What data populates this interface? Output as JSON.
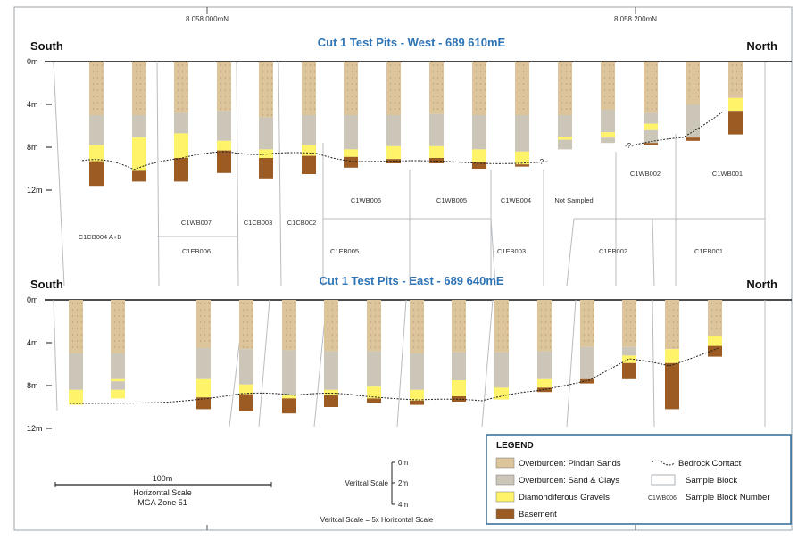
{
  "top_eastings": [
    "8 058 000mN",
    "8 058 200mN"
  ],
  "section_west": {
    "title": "Cut 1 Test Pits - West - 689 610mE",
    "left_label": "South",
    "right_label": "North",
    "depth_labels": [
      "0m",
      "4m",
      "8m",
      "12m"
    ],
    "block_numbers": [
      "C1CB004 A+B",
      "C1WB007",
      "C1CB003",
      "C1CB002",
      "C1WB006",
      "C1WB005",
      "C1WB004",
      "Not Sampled",
      "C1WB002",
      "C1WB001",
      "C1EB006",
      "C1EB005",
      "C1EB003",
      "C1EB002",
      "C1EB001"
    ],
    "unknown_markers": [
      "-?",
      "-?-"
    ],
    "pits": [
      {
        "depth_m": 11.6,
        "layers": [
          {
            "unit": "pindan",
            "top": 0,
            "bottom": 5
          },
          {
            "unit": "sand_clay",
            "top": 5,
            "bottom": 7.8
          },
          {
            "unit": "gravel",
            "top": 7.8,
            "bottom": 9.3
          },
          {
            "unit": "basement",
            "top": 9.3,
            "bottom": 11.6
          }
        ]
      },
      {
        "depth_m": 11.2,
        "layers": [
          {
            "unit": "pindan",
            "top": 0,
            "bottom": 5
          },
          {
            "unit": "sand_clay",
            "top": 5,
            "bottom": 7.1
          },
          {
            "unit": "gravel",
            "top": 7.1,
            "bottom": 10.2
          },
          {
            "unit": "basement",
            "top": 10.2,
            "bottom": 11.2
          }
        ]
      },
      {
        "depth_m": 11.2,
        "layers": [
          {
            "unit": "pindan",
            "top": 0,
            "bottom": 4.8
          },
          {
            "unit": "sand_clay",
            "top": 4.8,
            "bottom": 6.7
          },
          {
            "unit": "gravel",
            "top": 6.7,
            "bottom": 9.0
          },
          {
            "unit": "basement",
            "top": 9.0,
            "bottom": 11.2
          }
        ]
      },
      {
        "depth_m": 10.4,
        "layers": [
          {
            "unit": "pindan",
            "top": 0,
            "bottom": 4.6
          },
          {
            "unit": "sand_clay",
            "top": 4.6,
            "bottom": 7.4
          },
          {
            "unit": "gravel",
            "top": 7.4,
            "bottom": 8.3
          },
          {
            "unit": "basement",
            "top": 8.3,
            "bottom": 10.4
          }
        ]
      },
      {
        "depth_m": 10.9,
        "layers": [
          {
            "unit": "pindan",
            "top": 0,
            "bottom": 5.2
          },
          {
            "unit": "sand_clay",
            "top": 5.2,
            "bottom": 8.2
          },
          {
            "unit": "gravel",
            "top": 8.2,
            "bottom": 9.0
          },
          {
            "unit": "basement",
            "top": 9.0,
            "bottom": 10.9
          }
        ]
      },
      {
        "depth_m": 10.5,
        "layers": [
          {
            "unit": "pindan",
            "top": 0,
            "bottom": 5.0
          },
          {
            "unit": "sand_clay",
            "top": 5.0,
            "bottom": 7.8
          },
          {
            "unit": "gravel",
            "top": 7.8,
            "bottom": 8.8
          },
          {
            "unit": "basement",
            "top": 8.8,
            "bottom": 10.5
          }
        ]
      },
      {
        "depth_m": 9.9,
        "layers": [
          {
            "unit": "pindan",
            "top": 0,
            "bottom": 5.0
          },
          {
            "unit": "sand_clay",
            "top": 5.0,
            "bottom": 8.2
          },
          {
            "unit": "gravel",
            "top": 8.2,
            "bottom": 8.9
          },
          {
            "unit": "basement",
            "top": 8.9,
            "bottom": 9.9
          }
        ]
      },
      {
        "depth_m": 9.5,
        "layers": [
          {
            "unit": "pindan",
            "top": 0,
            "bottom": 5.0
          },
          {
            "unit": "sand_clay",
            "top": 5.0,
            "bottom": 7.9
          },
          {
            "unit": "gravel",
            "top": 7.9,
            "bottom": 9.1
          },
          {
            "unit": "basement",
            "top": 9.1,
            "bottom": 9.5
          }
        ]
      },
      {
        "depth_m": 9.5,
        "layers": [
          {
            "unit": "pindan",
            "top": 0,
            "bottom": 4.9
          },
          {
            "unit": "sand_clay",
            "top": 4.9,
            "bottom": 7.9
          },
          {
            "unit": "gravel",
            "top": 7.9,
            "bottom": 9.0
          },
          {
            "unit": "basement",
            "top": 9.0,
            "bottom": 9.5
          }
        ]
      },
      {
        "depth_m": 10.0,
        "layers": [
          {
            "unit": "pindan",
            "top": 0,
            "bottom": 5.0
          },
          {
            "unit": "sand_clay",
            "top": 5.0,
            "bottom": 8.2
          },
          {
            "unit": "gravel",
            "top": 8.2,
            "bottom": 9.4
          },
          {
            "unit": "basement",
            "top": 9.4,
            "bottom": 10.0
          }
        ]
      },
      {
        "depth_m": 9.8,
        "layers": [
          {
            "unit": "pindan",
            "top": 0,
            "bottom": 5.0
          },
          {
            "unit": "sand_clay",
            "top": 5.0,
            "bottom": 8.4
          },
          {
            "unit": "gravel",
            "top": 8.4,
            "bottom": 9.6
          },
          {
            "unit": "basement",
            "top": 9.6,
            "bottom": 9.8
          }
        ]
      },
      {
        "depth_m": 8.2,
        "layers": [
          {
            "unit": "pindan",
            "top": 0,
            "bottom": 5.0
          },
          {
            "unit": "sand_clay",
            "top": 5.0,
            "bottom": 7.0
          },
          {
            "unit": "gravel",
            "top": 7.0,
            "bottom": 7.3
          },
          {
            "unit": "sand_clay",
            "top": 7.3,
            "bottom": 8.2
          }
        ]
      },
      {
        "depth_m": 7.6,
        "layers": [
          {
            "unit": "pindan",
            "top": 0,
            "bottom": 4.5
          },
          {
            "unit": "sand_clay",
            "top": 4.5,
            "bottom": 6.6
          },
          {
            "unit": "gravel",
            "top": 6.6,
            "bottom": 7.1
          },
          {
            "unit": "sand_clay",
            "top": 7.1,
            "bottom": 7.6
          }
        ]
      },
      {
        "depth_m": 7.8,
        "layers": [
          {
            "unit": "pindan",
            "top": 0,
            "bottom": 4.8
          },
          {
            "unit": "sand_clay",
            "top": 4.8,
            "bottom": 5.8
          },
          {
            "unit": "gravel",
            "top": 5.8,
            "bottom": 6.4
          },
          {
            "unit": "sand_clay",
            "top": 6.4,
            "bottom": 7.6
          },
          {
            "unit": "basement",
            "top": 7.6,
            "bottom": 7.8
          }
        ]
      },
      {
        "depth_m": 7.4,
        "layers": [
          {
            "unit": "pindan",
            "top": 0,
            "bottom": 4.0
          },
          {
            "unit": "sand_clay",
            "top": 4.0,
            "bottom": 7.1
          },
          {
            "unit": "basement",
            "top": 7.1,
            "bottom": 7.4
          }
        ]
      },
      {
        "depth_m": 6.8,
        "layers": [
          {
            "unit": "pindan",
            "top": 0,
            "bottom": 3.4
          },
          {
            "unit": "gravel",
            "top": 3.4,
            "bottom": 4.6
          },
          {
            "unit": "basement",
            "top": 4.6,
            "bottom": 6.8
          }
        ]
      }
    ]
  },
  "section_east": {
    "title": "Cut 1 Test Pits - East - 689 640mE",
    "left_label": "South",
    "right_label": "North",
    "depth_labels": [
      "0m",
      "4m",
      "8m",
      "12m"
    ],
    "pits": [
      {
        "depth_m": 9.8,
        "layers": [
          {
            "unit": "pindan",
            "top": 0,
            "bottom": 5.0
          },
          {
            "unit": "sand_clay",
            "top": 5.0,
            "bottom": 8.4
          },
          {
            "unit": "gravel",
            "top": 8.4,
            "bottom": 9.8
          }
        ]
      },
      {
        "depth_m": 9.2,
        "layers": [
          {
            "unit": "pindan",
            "top": 0,
            "bottom": 5.0
          },
          {
            "unit": "sand_clay",
            "top": 5.0,
            "bottom": 7.4
          },
          {
            "unit": "gravel",
            "top": 7.4,
            "bottom": 7.6
          },
          {
            "unit": "sand_clay",
            "top": 7.6,
            "bottom": 8.4
          },
          {
            "unit": "gravel",
            "top": 8.4,
            "bottom": 9.2
          }
        ]
      },
      {
        "depth_m": 10.2,
        "layers": [
          {
            "unit": "pindan",
            "top": 0,
            "bottom": 4.5
          },
          {
            "unit": "sand_clay",
            "top": 4.5,
            "bottom": 7.4
          },
          {
            "unit": "gravel",
            "top": 7.4,
            "bottom": 9.1
          },
          {
            "unit": "basement",
            "top": 9.1,
            "bottom": 10.2
          }
        ]
      },
      {
        "depth_m": 10.4,
        "layers": [
          {
            "unit": "pindan",
            "top": 0,
            "bottom": 4.6
          },
          {
            "unit": "sand_clay",
            "top": 4.6,
            "bottom": 7.9
          },
          {
            "unit": "gravel",
            "top": 7.9,
            "bottom": 8.8
          },
          {
            "unit": "basement",
            "top": 8.8,
            "bottom": 10.4
          }
        ]
      },
      {
        "depth_m": 10.6,
        "layers": [
          {
            "unit": "pindan",
            "top": 0,
            "bottom": 4.7
          },
          {
            "unit": "sand_clay",
            "top": 4.7,
            "bottom": 8.9
          },
          {
            "unit": "gravel",
            "top": 8.9,
            "bottom": 9.2
          },
          {
            "unit": "basement",
            "top": 9.2,
            "bottom": 10.6
          }
        ]
      },
      {
        "depth_m": 10.0,
        "layers": [
          {
            "unit": "pindan",
            "top": 0,
            "bottom": 4.8
          },
          {
            "unit": "sand_clay",
            "top": 4.8,
            "bottom": 8.4
          },
          {
            "unit": "gravel",
            "top": 8.4,
            "bottom": 8.9
          },
          {
            "unit": "basement",
            "top": 8.9,
            "bottom": 10.0
          }
        ]
      },
      {
        "depth_m": 9.6,
        "layers": [
          {
            "unit": "pindan",
            "top": 0,
            "bottom": 4.8
          },
          {
            "unit": "sand_clay",
            "top": 4.8,
            "bottom": 8.1
          },
          {
            "unit": "gravel",
            "top": 8.1,
            "bottom": 9.2
          },
          {
            "unit": "basement",
            "top": 9.2,
            "bottom": 9.6
          }
        ]
      },
      {
        "depth_m": 9.8,
        "layers": [
          {
            "unit": "pindan",
            "top": 0,
            "bottom": 5.0
          },
          {
            "unit": "sand_clay",
            "top": 5.0,
            "bottom": 8.4
          },
          {
            "unit": "gravel",
            "top": 8.4,
            "bottom": 9.4
          },
          {
            "unit": "basement",
            "top": 9.4,
            "bottom": 9.8
          }
        ]
      },
      {
        "depth_m": 9.5,
        "layers": [
          {
            "unit": "pindan",
            "top": 0,
            "bottom": 4.9
          },
          {
            "unit": "sand_clay",
            "top": 4.9,
            "bottom": 7.5
          },
          {
            "unit": "gravel",
            "top": 7.5,
            "bottom": 9.0
          },
          {
            "unit": "basement",
            "top": 9.0,
            "bottom": 9.5
          }
        ]
      },
      {
        "depth_m": 9.3,
        "layers": [
          {
            "unit": "pindan",
            "top": 0,
            "bottom": 4.9
          },
          {
            "unit": "sand_clay",
            "top": 4.9,
            "bottom": 8.2
          },
          {
            "unit": "gravel",
            "top": 8.2,
            "bottom": 9.3
          }
        ]
      },
      {
        "depth_m": 8.6,
        "layers": [
          {
            "unit": "pindan",
            "top": 0,
            "bottom": 4.8
          },
          {
            "unit": "sand_clay",
            "top": 4.8,
            "bottom": 7.4
          },
          {
            "unit": "gravel",
            "top": 7.4,
            "bottom": 8.2
          },
          {
            "unit": "basement",
            "top": 8.2,
            "bottom": 8.6
          }
        ]
      },
      {
        "depth_m": 7.8,
        "layers": [
          {
            "unit": "pindan",
            "top": 0,
            "bottom": 4.4
          },
          {
            "unit": "sand_clay",
            "top": 4.4,
            "bottom": 7.4
          },
          {
            "unit": "basement",
            "top": 7.4,
            "bottom": 7.8
          }
        ]
      },
      {
        "depth_m": 7.4,
        "layers": [
          {
            "unit": "pindan",
            "top": 0,
            "bottom": 4.4
          },
          {
            "unit": "sand_clay",
            "top": 4.4,
            "bottom": 5.2
          },
          {
            "unit": "gravel",
            "top": 5.2,
            "bottom": 5.9
          },
          {
            "unit": "basement",
            "top": 5.9,
            "bottom": 7.4
          }
        ]
      },
      {
        "depth_m": 10.2,
        "layers": [
          {
            "unit": "pindan",
            "top": 0,
            "bottom": 4.6
          },
          {
            "unit": "gravel",
            "top": 4.6,
            "bottom": 5.9
          },
          {
            "unit": "basement",
            "top": 5.9,
            "bottom": 10.2
          }
        ]
      },
      {
        "depth_m": 5.3,
        "layers": [
          {
            "unit": "pindan",
            "top": 0,
            "bottom": 3.4
          },
          {
            "unit": "gravel",
            "top": 3.4,
            "bottom": 4.3
          },
          {
            "unit": "basement",
            "top": 4.3,
            "bottom": 5.3
          }
        ]
      }
    ]
  },
  "horizontal_scale": {
    "value": "100m",
    "label": "Horizontal Scale",
    "zone": "MGA Zone 51"
  },
  "vertical_scale": {
    "label": "Veritcal Scale",
    "ticks": [
      "0m",
      "2m",
      "4m"
    ],
    "note": "Veritcal Scale = 5x Horizontal Scale"
  },
  "legend": {
    "title": "LEGEND",
    "items": [
      {
        "label": "Overburden: Pindan Sands",
        "color": "#dcc59a"
      },
      {
        "label": "Overburden: Sand & Clays",
        "color": "#cbc6b8"
      },
      {
        "label": "Diamondiferous Gravels",
        "color": "#fff36a"
      },
      {
        "label": "Basement",
        "color": "#9b5b22"
      }
    ],
    "bedrock_label": "Bedrock Contact",
    "sample_block_label": "Sample Block",
    "sample_number_example": "C1WB006",
    "sample_number_label": "Sample Block Number"
  },
  "colors": {
    "title_blue": "#2e74b5",
    "pindan": "#dcc59a",
    "sand_clay": "#cbc6b8",
    "gravel": "#fff36a",
    "basement": "#9b5b22",
    "legend_border": "#2f6b96"
  }
}
